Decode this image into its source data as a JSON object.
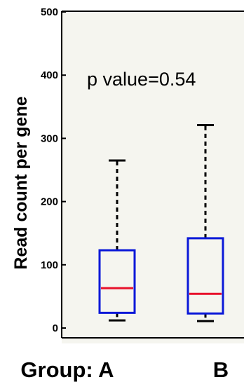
{
  "chart_data": {
    "type": "box",
    "ylabel": "Read count per gene",
    "ylim": [
      0,
      500
    ],
    "yticks": [
      0,
      100,
      200,
      300,
      400,
      500
    ],
    "categories": [
      "Group: A",
      "B"
    ],
    "boxes": [
      {
        "category": "Group: A",
        "whisker_low": 12,
        "q1": 24,
        "median": 63,
        "q3": 123,
        "whisker_high": 265
      },
      {
        "category": "B",
        "whisker_low": 11,
        "q1": 23,
        "median": 54,
        "q3": 142,
        "whisker_high": 321
      }
    ],
    "annotation": "p value=0.54",
    "colors": {
      "box": "#0a18d8",
      "median": "#e8102a",
      "whisker": "#000000",
      "plot_background": "#f5f5ef"
    }
  }
}
